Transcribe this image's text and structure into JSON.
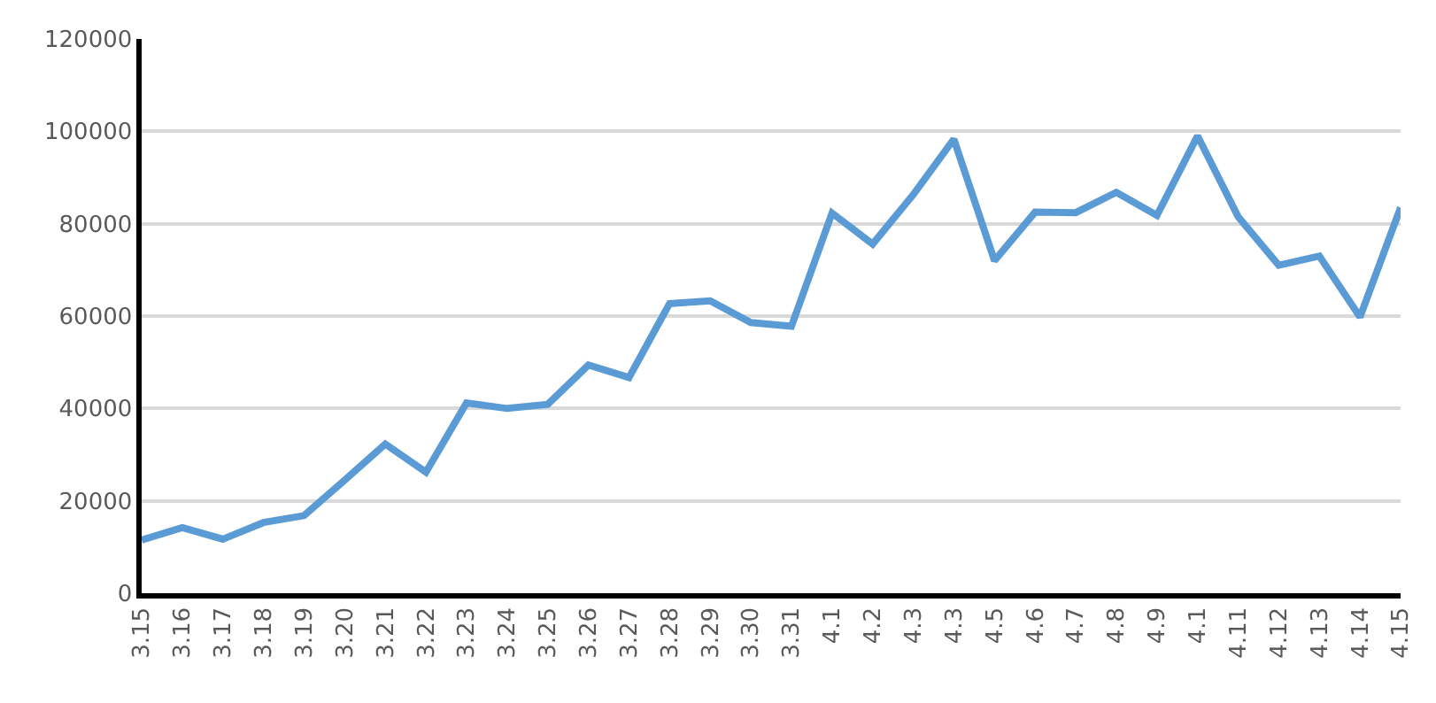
{
  "chart_data": {
    "type": "line",
    "categories": [
      "3.15",
      "3.16",
      "3.17",
      "3.18",
      "3.19",
      "3.20",
      "3.21",
      "3.22",
      "3.23",
      "3.24",
      "3.25",
      "3.26",
      "3.27",
      "3.28",
      "3.29",
      "3.30",
      "3.31",
      "4.1",
      "4.2",
      "4.3",
      "4.3",
      "4.5",
      "4.6",
      "4.7",
      "4.8",
      "4.9",
      "4.1",
      "4.11",
      "4.12",
      "4.13",
      "4.14",
      "4.15"
    ],
    "series": [
      {
        "color": "#5b9bd5",
        "values": [
          11500,
          14200,
          11700,
          15300,
          16800,
          24500,
          32300,
          26200,
          41200,
          40000,
          40900,
          49400,
          46700,
          62700,
          63300,
          58600,
          57800,
          82300,
          75600,
          86300,
          98300,
          72000,
          82500,
          82400,
          86800,
          81800,
          99000,
          81500,
          71000,
          73000,
          59800,
          83500
        ]
      }
    ],
    "ylim": [
      0,
      120000
    ],
    "yticks": [
      0,
      20000,
      40000,
      60000,
      80000,
      100000,
      120000
    ],
    "grid": "y",
    "marker": "none",
    "line_style": "solid"
  }
}
